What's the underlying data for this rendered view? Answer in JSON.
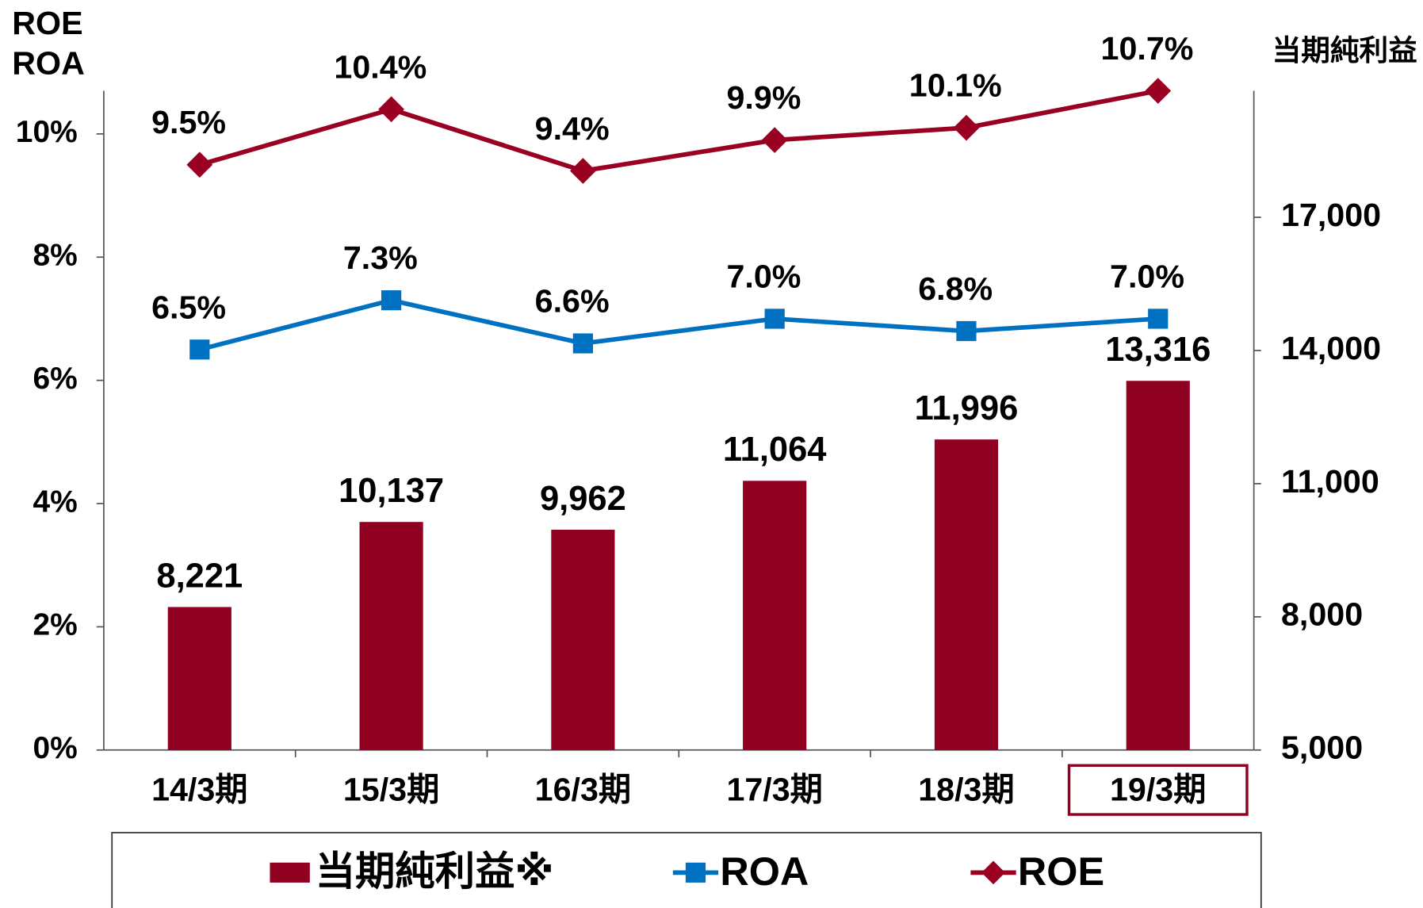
{
  "chart_data": {
    "type": "bar",
    "ylabel": [
      "ROE",
      "ROA"
    ],
    "y2label": "当期純利益",
    "categories": [
      "14/3期",
      "15/3期",
      "16/3期",
      "17/3期",
      "18/3期",
      "19/3期"
    ],
    "highlight_category": 5,
    "series": [
      {
        "name": "当期純利益※",
        "type": "bar",
        "axis": "y2",
        "color": "#900020",
        "values": [
          8221,
          10137,
          9962,
          11064,
          11996,
          13316
        ],
        "value_labels": [
          "8,221",
          "10,137",
          "9,962",
          "11,064",
          "11,996",
          "13,316"
        ]
      },
      {
        "name": "ROA",
        "type": "line",
        "marker": "square",
        "color": "#0070c0",
        "values": [
          6.5,
          7.3,
          6.6,
          7.0,
          6.8,
          7.0
        ],
        "value_labels": [
          "6.5%",
          "7.3%",
          "6.6%",
          "7.0%",
          "6.8%",
          "7.0%"
        ]
      },
      {
        "name": "ROE",
        "type": "line",
        "marker": "diamond",
        "color": "#990022",
        "values": [
          9.5,
          10.4,
          9.4,
          9.9,
          10.1,
          10.7
        ],
        "value_labels": [
          "9.5%",
          "10.4%",
          "9.4%",
          "9.9%",
          "10.1%",
          "10.7%"
        ]
      }
    ],
    "ylim": [
      0,
      10.7
    ],
    "yticks": [
      {
        "value": 0,
        "label": "0%"
      },
      {
        "value": 2,
        "label": "2%"
      },
      {
        "value": 4,
        "label": "4%"
      },
      {
        "value": 6,
        "label": "6%"
      },
      {
        "value": 8,
        "label": "8%"
      },
      {
        "value": 10,
        "label": "10%"
      }
    ],
    "y2lim": [
      5000,
      19850
    ],
    "y2ticks": [
      {
        "value": 5000,
        "label": "5,000"
      },
      {
        "value": 8000,
        "label": "8,000"
      },
      {
        "value": 11000,
        "label": "11,000"
      },
      {
        "value": 14000,
        "label": "14,000"
      },
      {
        "value": 17000,
        "label": "17,000"
      }
    ]
  }
}
